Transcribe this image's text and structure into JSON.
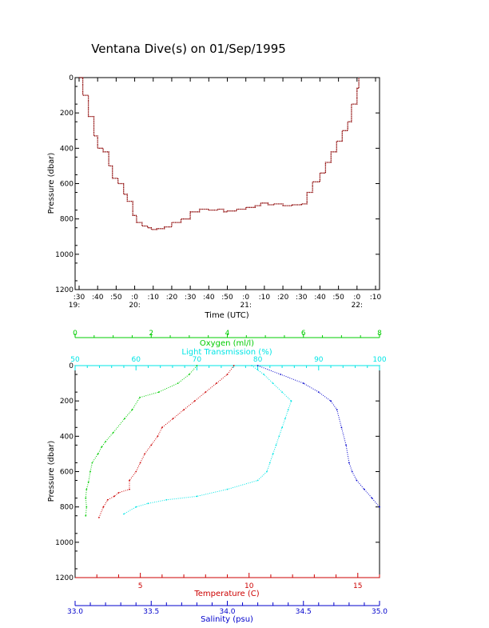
{
  "title": "Ventana Dive(s) on 01/Sep/1995",
  "chart_data": [
    {
      "type": "line",
      "xlabel": "Time (UTC)",
      "ylabel": "Pressure (dbar)",
      "x_hour_labels": [
        "19:",
        "20:",
        "21:",
        "22:"
      ],
      "x_ticks": [
        ":30",
        ":40",
        ":50",
        ":0",
        ":10",
        ":20",
        ":30",
        ":40",
        ":50",
        ":0",
        ":10",
        ":20",
        ":30",
        ":40",
        ":50",
        ":0",
        ":10"
      ],
      "xlim": [
        "19:30",
        "22:10"
      ],
      "ylim": [
        1200,
        0
      ],
      "y_ticks": [
        "0",
        "200",
        "400",
        "600",
        "800",
        "1000",
        "1200"
      ],
      "series": [
        {
          "color": "#8b0000",
          "x": [
            "19:30",
            "19:32",
            "19:35",
            "19:38",
            "19:40",
            "19:43",
            "19:46",
            "19:48",
            "19:51",
            "19:54",
            "19:56",
            "19:59",
            "20:01",
            "20:04",
            "20:07",
            "20:09",
            "20:12",
            "20:16",
            "20:20",
            "20:25",
            "20:30",
            "20:35",
            "20:40",
            "20:45",
            "20:48",
            "20:50",
            "20:55",
            "21:00",
            "21:05",
            "21:08",
            "21:12",
            "21:15",
            "21:20",
            "21:25",
            "21:30",
            "21:33",
            "21:36",
            "21:40",
            "21:43",
            "21:46",
            "21:49",
            "21:52",
            "21:55",
            "21:57",
            "22:00",
            "22:01"
          ],
          "y": [
            0,
            100,
            220,
            330,
            400,
            420,
            500,
            570,
            600,
            660,
            700,
            780,
            820,
            840,
            850,
            860,
            855,
            845,
            820,
            800,
            760,
            745,
            750,
            745,
            760,
            755,
            745,
            735,
            725,
            710,
            720,
            715,
            725,
            720,
            715,
            650,
            590,
            540,
            480,
            420,
            360,
            300,
            250,
            150,
            60,
            0
          ]
        }
      ]
    },
    {
      "type": "scatter",
      "ylabel": "Pressure (dbar)",
      "ylim": [
        1200,
        0
      ],
      "y_ticks": [
        "0",
        "200",
        "400",
        "600",
        "800",
        "1000",
        "1200"
      ],
      "axes": {
        "oxygen": {
          "label": "Oxygen (ml/l)",
          "range": [
            0,
            8
          ],
          "ticks": [
            "0",
            "2",
            "4",
            "6",
            "8"
          ],
          "color": "#00cc00"
        },
        "transmission": {
          "label": "Light Transmission (%)",
          "range": [
            50,
            100
          ],
          "ticks": [
            "50",
            "60",
            "70",
            "80",
            "90",
            "100"
          ],
          "color": "#00e5e5"
        },
        "temperature": {
          "label": "Temperature (C)",
          "range": [
            2,
            16
          ],
          "ticks": [
            "5",
            "10",
            "15"
          ],
          "color": "#cc0000"
        },
        "salinity": {
          "label": "Salinity (psu)",
          "range": [
            33.0,
            35.0
          ],
          "ticks": [
            "33.0",
            "33.5",
            "34.0",
            "34.5",
            "35.0"
          ],
          "color": "#0000cc"
        }
      },
      "series": [
        {
          "name": "Oxygen (ml/l)",
          "axis": "oxygen",
          "color": "#00cc00",
          "x": [
            3.2,
            3.0,
            2.7,
            2.2,
            1.7,
            1.5,
            1.3,
            1.0,
            0.8,
            0.7,
            0.6,
            0.45,
            0.4,
            0.35,
            0.3,
            0.28,
            0.3,
            0.28
          ],
          "y": [
            0,
            50,
            100,
            150,
            180,
            250,
            300,
            380,
            430,
            460,
            500,
            550,
            600,
            660,
            700,
            750,
            800,
            850
          ]
        },
        {
          "name": "Temperature (C)",
          "axis": "temperature",
          "color": "#cc0000",
          "x": [
            9.3,
            9.0,
            8.5,
            8.0,
            7.5,
            7.0,
            6.5,
            6.0,
            5.8,
            5.5,
            5.2,
            5.0,
            4.8,
            4.5,
            4.5,
            4.0,
            3.8,
            3.5,
            3.3,
            3.1
          ],
          "y": [
            0,
            50,
            100,
            150,
            200,
            250,
            300,
            350,
            400,
            450,
            500,
            550,
            600,
            650,
            700,
            720,
            740,
            760,
            800,
            860
          ]
        },
        {
          "name": "Light Transmission (%)",
          "axis": "transmission",
          "color": "#00e5e5",
          "x": [
            79,
            81,
            82.5,
            84,
            85.5,
            85,
            84.5,
            84,
            83.5,
            83,
            82.5,
            82,
            81.5,
            80,
            75,
            70,
            65,
            62,
            60,
            58
          ],
          "y": [
            0,
            50,
            100,
            150,
            200,
            250,
            300,
            350,
            400,
            450,
            500,
            550,
            600,
            650,
            700,
            740,
            760,
            780,
            800,
            840
          ]
        },
        {
          "name": "Salinity (psu)",
          "axis": "salinity",
          "color": "#0000cc",
          "x": [
            34.2,
            34.35,
            34.5,
            34.6,
            34.68,
            34.72,
            34.75,
            34.78,
            34.8,
            34.82,
            34.85,
            34.9,
            34.95,
            35.0
          ],
          "y": [
            0,
            50,
            100,
            150,
            200,
            250,
            350,
            450,
            550,
            600,
            650,
            700,
            750,
            800
          ]
        }
      ]
    }
  ]
}
